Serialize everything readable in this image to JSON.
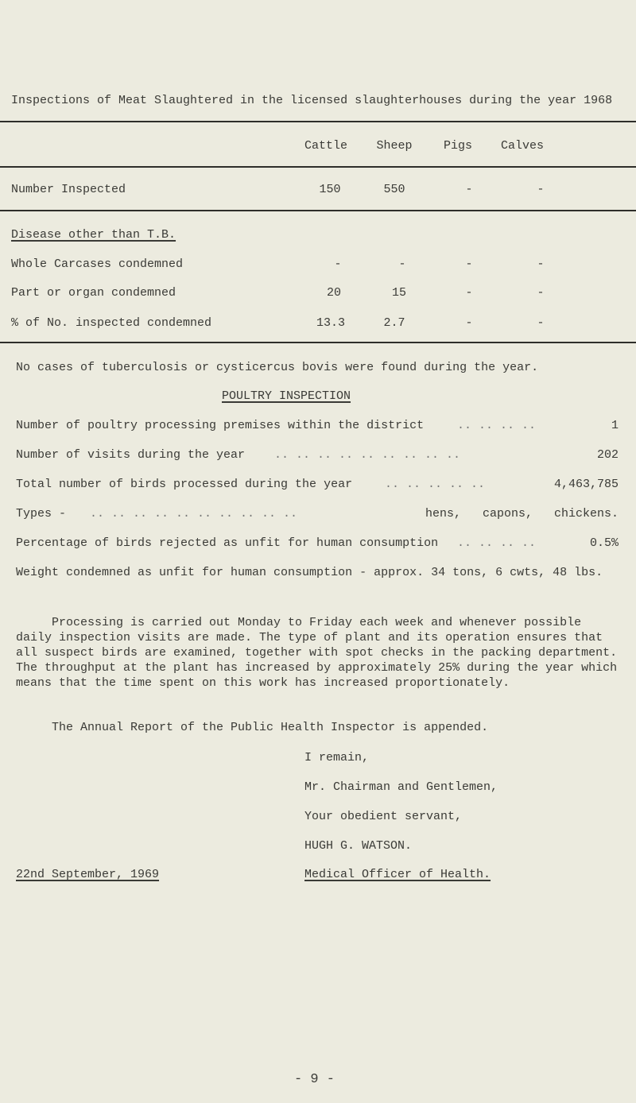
{
  "title": "Inspections of Meat Slaughtered in the licensed slaughterhouses during the year 1968",
  "table": {
    "columns": [
      "Cattle",
      "Sheep",
      "Pigs",
      "Calves"
    ],
    "number_inspected": {
      "label": "Number Inspected",
      "values": [
        "150",
        "550",
        "-",
        "-"
      ]
    },
    "section_heading": "Disease other than T.B.",
    "rows": [
      {
        "label": "Whole Carcases condemned",
        "values": [
          "-",
          "-",
          "-",
          "-"
        ]
      },
      {
        "label": "Part or organ condemned",
        "values": [
          "20",
          "15",
          "-",
          "-"
        ]
      },
      {
        "label": "% of No. inspected condemned",
        "values": [
          "13.3",
          "2.7",
          "-",
          "-"
        ]
      }
    ]
  },
  "tb_note": "No cases of tuberculosis or cysticercus bovis were found during the year.",
  "poultry": {
    "heading": "POULTRY INSPECTION",
    "items": [
      {
        "label": "Number of poultry processing premises within the district",
        "dots": ".. .. .. ..",
        "value": "1"
      },
      {
        "label": "Number of visits during the year",
        "dots": ".. .. .. .. .. .. .. .. ..",
        "value": "202"
      },
      {
        "label": "Total number of birds processed during the year",
        "dots": ".. .. .. .. ..",
        "value": "4,463,785"
      },
      {
        "label": "Types -",
        "dots": ".. .. .. .. .. .. .. .. .. ..",
        "value": "hens,   capons,   chickens."
      },
      {
        "label": "Percentage of birds rejected as unfit for human consumption",
        "dots": ".. .. .. ..",
        "value": "0.5%"
      },
      {
        "label": "Weight condemned as unfit for human consumption - approx. 34 tons, 6 cwts, 48 lbs.",
        "dots": "",
        "value": ""
      }
    ],
    "paragraph": "Processing is carried out Monday to Friday each week and whenever possible daily inspection visits are made. The type of plant and its operation ensures that all suspect birds are examined, together with spot checks in the packing department. The throughput at the plant has increased by approximately 25% during the year which means that the time spent on this work has increased proportionately."
  },
  "annual_report_note": "The Annual Report of the Public Health Inspector is appended.",
  "closing": {
    "line1": "I remain,",
    "line2": "Mr. Chairman and Gentlemen,",
    "line3": "Your obedient servant,",
    "signature": "HUGH G. WATSON.",
    "title": "Medical Officer of Health.",
    "date": "22nd September, 1969"
  },
  "page_number": "- 9 -"
}
